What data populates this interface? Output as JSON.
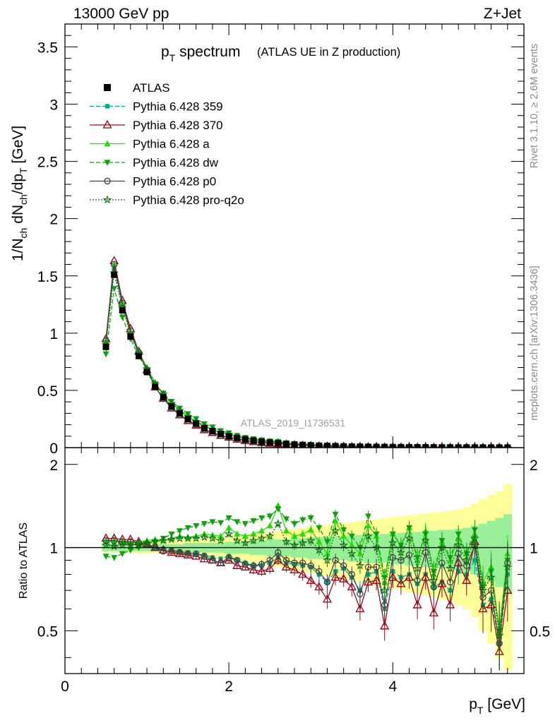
{
  "header": {
    "left": "13000 GeV pp",
    "right": "Z+Jet"
  },
  "title": {
    "main": "p",
    "main_sub": "T",
    "main_rest": " spectrum",
    "paren": "(ATLAS UE in Z production)"
  },
  "axes": {
    "xlabel": "p",
    "xlabel_sub": "T",
    "xlabel_unit": " [GeV]",
    "ylabel_top": "1/N",
    "ylabel_top_sub1": "ch",
    "ylabel_top_mid": " dN",
    "ylabel_top_sub2": "ch",
    "ylabel_top_mid2": "/dp",
    "ylabel_top_sub3": "T",
    "ylabel_top_unit": " [GeV]",
    "ylabel_ratio": "Ratio to ATLAS",
    "x_ticks": [
      "0",
      "2",
      "4"
    ],
    "y_ticks_main": [
      "0",
      "0.5",
      "1",
      "1.5",
      "2",
      "2.5",
      "3",
      "3.5"
    ],
    "y_ticks_ratio": [
      "0.5",
      "1",
      "2"
    ]
  },
  "side_text": {
    "rivet": "Rivet 3.1.10, ≥ 2.6M events",
    "mcplots": "mcplots.cern.ch [arXiv:1306.3436]"
  },
  "watermark": "ATLAS_2019_I1736531",
  "legend": [
    {
      "label": "ATLAS",
      "color": "#000000",
      "marker": "square",
      "dash": "none"
    },
    {
      "label": "Pythia 6.428 359",
      "color": "#00a884",
      "marker": "smallsquare",
      "dash": "6,3"
    },
    {
      "label": "Pythia 6.428 370",
      "color": "#9b0a1e",
      "marker": "triangle-open",
      "dash": "none"
    },
    {
      "label": "Pythia 6.428 a",
      "color": "#22dd00",
      "marker": "triangle",
      "dash": "none"
    },
    {
      "label": "Pythia 6.428 dw",
      "color": "#10a010",
      "marker": "triangle-down",
      "dash": "6,3"
    },
    {
      "label": "Pythia 6.428 p0",
      "color": "#444444",
      "marker": "circle-open",
      "dash": "none"
    },
    {
      "label": "Pythia 6.428 pro-q2o",
      "color": "#107010",
      "marker": "star-open",
      "dash": "2,2"
    }
  ],
  "chart_data": {
    "type": "line",
    "x": [
      0.5,
      0.6,
      0.7,
      0.8,
      0.9,
      1.0,
      1.1,
      1.2,
      1.3,
      1.4,
      1.5,
      1.6,
      1.7,
      1.8,
      1.9,
      2.0,
      2.1,
      2.2,
      2.3,
      2.4,
      2.5,
      2.6,
      2.7,
      2.8,
      2.9,
      3.0,
      3.1,
      3.2,
      3.3,
      3.4,
      3.5,
      3.6,
      3.7,
      3.8,
      3.9,
      4.0,
      4.1,
      4.2,
      4.3,
      4.4,
      4.5,
      4.6,
      4.7,
      4.8,
      4.9,
      5.0,
      5.1,
      5.2,
      5.3,
      5.4
    ],
    "xlim": [
      0,
      5.6
    ],
    "ylim_main": [
      0,
      3.7
    ],
    "ylim_ratio": [
      0.35,
      2.3
    ],
    "ratio_log": true,
    "data": [
      0.88,
      1.51,
      1.2,
      0.97,
      0.8,
      0.66,
      0.53,
      0.44,
      0.36,
      0.3,
      0.25,
      0.21,
      0.17,
      0.145,
      0.12,
      0.1,
      0.085,
      0.072,
      0.061,
      0.052,
      0.044,
      0.038,
      0.032,
      0.027,
      0.023,
      0.02,
      0.017,
      0.015,
      0.013,
      0.011,
      0.0095,
      0.0082,
      0.0071,
      0.0062,
      0.0054,
      0.0047,
      0.0041,
      0.0036,
      0.0031,
      0.0027,
      0.0024,
      0.0021,
      0.0018,
      0.0016,
      0.0014,
      0.0012,
      0.001,
      0.0009,
      0.0008,
      0.0007
    ],
    "band_inner": [
      0.03,
      0.03,
      0.03,
      0.03,
      0.03,
      0.03,
      0.03,
      0.03,
      0.03,
      0.03,
      0.04,
      0.04,
      0.04,
      0.04,
      0.04,
      0.05,
      0.05,
      0.05,
      0.06,
      0.06,
      0.07,
      0.07,
      0.07,
      0.08,
      0.08,
      0.09,
      0.09,
      0.1,
      0.1,
      0.1,
      0.11,
      0.11,
      0.12,
      0.12,
      0.12,
      0.13,
      0.13,
      0.14,
      0.14,
      0.15,
      0.15,
      0.16,
      0.16,
      0.17,
      0.18,
      0.2,
      0.22,
      0.25,
      0.28,
      0.32
    ],
    "band_outer": [
      0.04,
      0.04,
      0.04,
      0.04,
      0.05,
      0.05,
      0.05,
      0.05,
      0.06,
      0.06,
      0.07,
      0.07,
      0.08,
      0.08,
      0.09,
      0.1,
      0.1,
      0.11,
      0.12,
      0.13,
      0.14,
      0.15,
      0.16,
      0.17,
      0.18,
      0.19,
      0.2,
      0.21,
      0.22,
      0.23,
      0.24,
      0.25,
      0.26,
      0.27,
      0.28,
      0.29,
      0.3,
      0.31,
      0.32,
      0.33,
      0.34,
      0.35,
      0.36,
      0.38,
      0.4,
      0.44,
      0.5,
      0.55,
      0.6,
      0.7
    ],
    "series": [
      {
        "name": "Pythia 6.428 359",
        "ratio": [
          1.05,
          1.03,
          1.04,
          1.03,
          1.02,
          1.02,
          1.0,
          0.99,
          0.98,
          0.97,
          0.96,
          0.95,
          0.94,
          0.92,
          0.91,
          0.93,
          0.9,
          0.88,
          0.86,
          0.86,
          0.88,
          0.92,
          0.88,
          0.87,
          0.86,
          0.85,
          0.8,
          0.75,
          0.82,
          0.84,
          0.78,
          0.7,
          0.8,
          0.82,
          0.6,
          0.82,
          0.78,
          0.8,
          0.74,
          0.8,
          0.72,
          0.75,
          0.7,
          0.82,
          0.8,
          0.9,
          0.62,
          0.65,
          0.45,
          0.8
        ]
      },
      {
        "name": "Pythia 6.428 370",
        "ratio": [
          1.08,
          1.08,
          1.07,
          1.07,
          1.05,
          1.03,
          1.0,
          0.98,
          0.96,
          0.95,
          0.94,
          0.93,
          0.91,
          0.9,
          0.88,
          0.9,
          0.86,
          0.85,
          0.83,
          0.82,
          0.84,
          0.9,
          0.85,
          0.83,
          0.8,
          0.76,
          0.72,
          0.65,
          0.78,
          0.77,
          0.72,
          0.6,
          0.75,
          0.76,
          0.52,
          0.78,
          0.74,
          0.78,
          0.62,
          0.78,
          0.58,
          0.74,
          0.62,
          0.88,
          0.76,
          1.05,
          0.6,
          0.62,
          0.42,
          0.7
        ]
      },
      {
        "name": "Pythia 6.428 a",
        "ratio": [
          1.05,
          1.06,
          1.05,
          1.04,
          1.05,
          1.06,
          1.07,
          1.06,
          1.08,
          1.1,
          1.09,
          1.1,
          1.12,
          1.11,
          1.1,
          1.18,
          1.12,
          1.1,
          1.12,
          1.15,
          1.2,
          1.42,
          1.15,
          1.1,
          1.12,
          1.16,
          1.05,
          0.95,
          1.25,
          1.1,
          1.02,
          0.95,
          1.2,
          1.1,
          0.75,
          1.12,
          1.02,
          1.18,
          0.9,
          1.15,
          0.8,
          1.05,
          0.9,
          1.08,
          0.95,
          1.12,
          0.75,
          0.85,
          0.5,
          0.95
        ]
      },
      {
        "name": "Pythia 6.428 dw",
        "ratio": [
          0.93,
          0.92,
          0.95,
          0.98,
          1.0,
          1.03,
          1.05,
          1.08,
          1.12,
          1.15,
          1.18,
          1.2,
          1.22,
          1.24,
          1.23,
          1.28,
          1.24,
          1.22,
          1.25,
          1.28,
          1.3,
          1.38,
          1.27,
          1.22,
          1.26,
          1.28,
          1.18,
          1.05,
          1.32,
          1.16,
          1.1,
          1.0,
          1.3,
          1.12,
          0.78,
          1.12,
          1.02,
          1.18,
          0.92,
          1.12,
          0.82,
          1.06,
          0.92,
          1.12,
          0.95,
          1.16,
          0.72,
          0.82,
          0.5,
          0.9
        ]
      },
      {
        "name": "Pythia 6.428 p0",
        "ratio": [
          1.06,
          1.06,
          1.05,
          1.05,
          1.04,
          1.03,
          1.0,
          0.97,
          0.97,
          0.96,
          0.95,
          0.95,
          0.93,
          0.9,
          0.88,
          0.92,
          0.9,
          0.87,
          0.86,
          0.87,
          0.9,
          0.96,
          0.9,
          0.88,
          0.88,
          0.86,
          0.82,
          0.75,
          0.9,
          0.86,
          0.8,
          0.68,
          0.85,
          0.85,
          0.62,
          0.92,
          0.9,
          0.94,
          0.76,
          0.96,
          0.72,
          0.88,
          0.75,
          0.95,
          0.86,
          1.02,
          0.66,
          0.7,
          0.45,
          0.88
        ]
      },
      {
        "name": "Pythia 6.428 pro-q2o",
        "ratio": [
          1.02,
          1.01,
          1.02,
          1.02,
          1.03,
          1.04,
          1.05,
          1.06,
          1.07,
          1.08,
          1.08,
          1.08,
          1.09,
          1.08,
          1.06,
          1.12,
          1.06,
          1.04,
          1.06,
          1.08,
          1.1,
          1.22,
          1.05,
          1.02,
          1.04,
          1.06,
          0.98,
          0.9,
          1.15,
          1.02,
          0.95,
          0.86,
          1.1,
          1.0,
          0.7,
          1.04,
          0.96,
          1.08,
          0.84,
          1.06,
          0.76,
          1.0,
          0.84,
          1.02,
          0.9,
          1.08,
          0.7,
          0.78,
          0.48,
          0.85
        ]
      }
    ]
  }
}
